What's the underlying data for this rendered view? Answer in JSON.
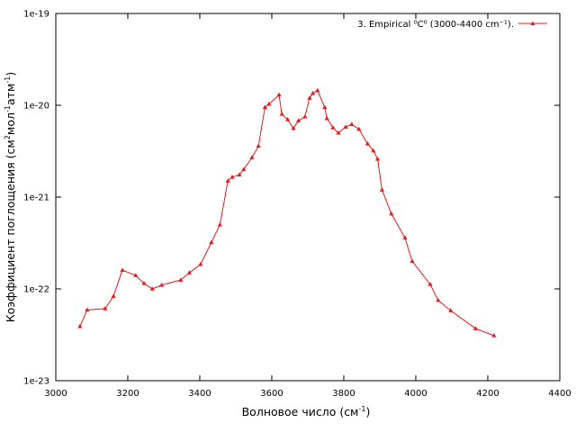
{
  "chart_data": {
    "type": "line",
    "title": "",
    "xlabel": "Волновое число (см",
    "xlabel_sup": "-1",
    "xlabel_end": ")",
    "ylabel": "Коэффициент поглощения (см",
    "ylabel_sup1": "2",
    "ylabel_mid": "мол",
    "ylabel_sup2": "-1",
    "ylabel_mid2": "атм",
    "ylabel_sup3": "-1",
    "ylabel_end": ")",
    "xlim": [
      3000,
      4400
    ],
    "ylim": [
      1e-23,
      1e-19
    ],
    "yscale": "log",
    "x_ticks": [
      3000,
      3200,
      3400,
      3600,
      3800,
      4000,
      4200,
      4400
    ],
    "x_tick_labels": [
      "3000",
      "3200",
      "3400",
      "3600",
      "3800",
      "4000",
      "4200",
      "4400"
    ],
    "y_ticks": [
      1e-23,
      1e-22,
      1e-21,
      1e-20,
      1e-19
    ],
    "y_tick_labels": [
      "1e-23",
      "1e-22",
      "1e-21",
      "1e-20",
      "1e-19"
    ],
    "grid": false,
    "legend_position": "top-right",
    "series": [
      {
        "name": "3. Empirical ⁰C⁰ (3000-4400 cm⁻¹).",
        "color": "#e41a1c",
        "marker": "triangle",
        "x": [
          3067,
          3087,
          3137,
          3160,
          3185,
          3222,
          3245,
          3268,
          3294,
          3347,
          3371,
          3402,
          3432,
          3456,
          3478,
          3490,
          3510,
          3522,
          3545,
          3563,
          3581,
          3592,
          3620,
          3628,
          3644,
          3660,
          3674,
          3692,
          3705,
          3714,
          3727,
          3747,
          3753,
          3770,
          3785,
          3805,
          3822,
          3842,
          3866,
          3882,
          3894,
          3906,
          3932,
          3970,
          3990,
          4040,
          4062,
          4097,
          4166,
          4217
        ],
        "y": [
          3.9e-23,
          5.9e-23,
          6.1e-23,
          8.3e-23,
          1.6e-22,
          1.4e-22,
          1.15e-22,
          1e-22,
          1.1e-22,
          1.25e-22,
          1.5e-22,
          1.85e-22,
          3.2e-22,
          5e-22,
          1.5e-21,
          1.65e-21,
          1.75e-21,
          2e-21,
          2.7e-21,
          3.6e-21,
          9.5e-21,
          1.03e-20,
          1.3e-20,
          8e-21,
          7e-21,
          5.6e-21,
          6.8e-21,
          7.5e-21,
          1.2e-20,
          1.35e-20,
          1.45e-20,
          9.5e-21,
          7.2e-21,
          5.7e-21,
          5e-21,
          5.8e-21,
          6.2e-21,
          5.5e-21,
          3.8e-21,
          3.2e-21,
          2.6e-21,
          1.2e-21,
          6.6e-22,
          3.6e-22,
          2e-22,
          1.12e-22,
          7.5e-23,
          5.8e-23,
          3.7e-23,
          3.1e-23
        ]
      }
    ]
  }
}
